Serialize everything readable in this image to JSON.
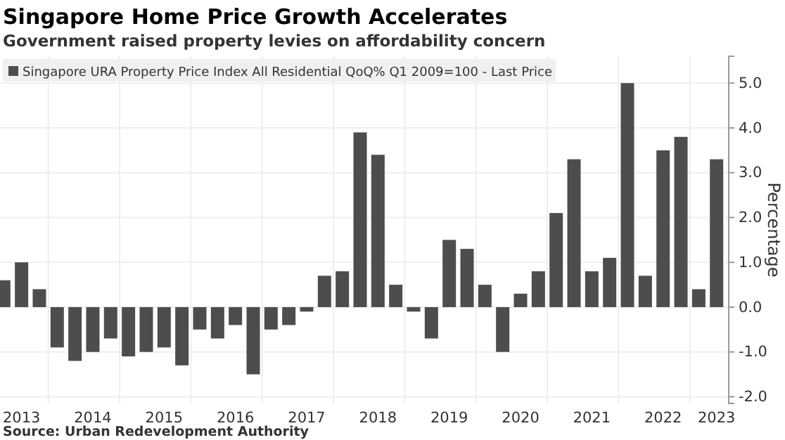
{
  "chart_data": {
    "type": "bar",
    "title": "Singapore Home Price Growth Accelerates",
    "subtitle": "Government raised property levies on affordability concern",
    "ylabel": "Percentage",
    "categories": [
      null,
      "2013",
      null,
      null,
      null,
      "2014",
      null,
      null,
      null,
      "2015",
      null,
      null,
      null,
      "2016",
      null,
      null,
      null,
      "2017",
      null,
      null,
      null,
      "2018",
      null,
      null,
      null,
      "2019",
      null,
      null,
      null,
      "2020",
      null,
      null,
      null,
      "2021",
      null,
      null,
      null,
      "2022",
      null,
      null,
      "2023"
    ],
    "series": [
      {
        "name": "Singapore URA Property Price Index All Residential QoQ% Q1 2009=100 - Last Price",
        "color": "#4d4d4d",
        "values": [
          0.6,
          1.0,
          0.4,
          -0.9,
          -1.2,
          -1.0,
          -0.7,
          -1.1,
          -1.0,
          -0.9,
          -1.3,
          -0.5,
          -0.7,
          -0.4,
          -1.5,
          -0.5,
          -0.4,
          -0.1,
          0.7,
          0.8,
          3.9,
          3.4,
          0.5,
          -0.1,
          -0.7,
          1.5,
          1.3,
          0.5,
          -1.0,
          0.3,
          0.8,
          2.1,
          3.3,
          0.8,
          1.1,
          5.0,
          0.7,
          3.5,
          3.8,
          0.4,
          3.3
        ]
      }
    ],
    "ylim": [
      -2.15,
      5.6
    ],
    "yticks": [
      {
        "value": -2,
        "label": "-2.0"
      },
      {
        "value": -1,
        "label": "-1.0"
      },
      {
        "value": 0,
        "label": "0.0"
      },
      {
        "value": 1,
        "label": "1.0"
      },
      {
        "value": 2,
        "label": "2.0"
      },
      {
        "value": 3,
        "label": "3.0"
      },
      {
        "value": 4,
        "label": "4.0"
      },
      {
        "value": 5,
        "label": "5.0"
      }
    ],
    "grid": true,
    "legend": "top left",
    "annotations": [
      "Source: Urban Redevelopment Authority"
    ]
  }
}
